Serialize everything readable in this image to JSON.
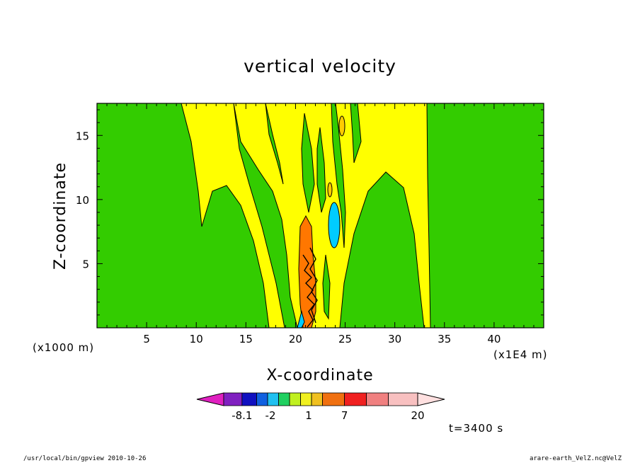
{
  "chart_data": {
    "type": "heatmap",
    "title": "vertical velocity",
    "xlabel": "X-coordinate",
    "ylabel": "Z-coordinate",
    "x_units_left": "(x1000 m)",
    "x_units_right": "(x1E4 m)",
    "xlim": [
      0,
      45
    ],
    "ylim": [
      0,
      17.5
    ],
    "x_ticks": [
      "5",
      "10",
      "15",
      "20",
      "25",
      "30",
      "35",
      "40"
    ],
    "x_tick_values": [
      5,
      10,
      15,
      20,
      25,
      30,
      35,
      40
    ],
    "y_ticks": [
      "5",
      "10",
      "15"
    ],
    "y_tick_values": [
      5,
      10,
      15
    ],
    "colorbar": {
      "labels": [
        "-8.1",
        "-2",
        "1",
        "7",
        "20"
      ],
      "colors": [
        "#e020c0",
        "#8020c0",
        "#1010c0",
        "#1060e0",
        "#20c0f0",
        "#20d060",
        "#c0f020",
        "#f0f020",
        "#f0c020",
        "#f07010",
        "#f02020",
        "#f08080",
        "#f8c0c0",
        "#ffe0e0"
      ]
    },
    "colors": {
      "background_green": "#33cc00",
      "yellow": "#ffff00",
      "orange": "#ff7700",
      "cyan": "#00ccff",
      "gold": "#ffcc00"
    },
    "annotation": "t=3400 s"
  },
  "footer": {
    "left": "/usr/local/bin/gpview  2010-10-26",
    "right": "arare-earth_VelZ.nc@VelZ"
  }
}
